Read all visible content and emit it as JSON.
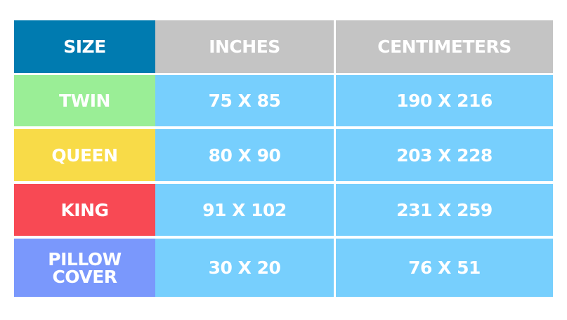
{
  "header": {
    "size": "SIZE",
    "inches": "INCHES",
    "centimeters": "CENTIMETERS"
  },
  "rows": [
    {
      "size": "TWIN",
      "inches": "75 X 85",
      "centimeters": "190 X 216",
      "color": "#9aee96"
    },
    {
      "size": "QUEEN",
      "inches": "80 X 90",
      "centimeters": "203 X 228",
      "color": "#f8db48"
    },
    {
      "size": "KING",
      "inches": "91 X 102",
      "centimeters": "231 X 259",
      "color": "#f84954"
    },
    {
      "size": "PILLOW COVER",
      "inches": "30 X 20",
      "centimeters": "76 X 51",
      "color": "#7a98fc"
    }
  ],
  "colors": {
    "header_size": "#007bb0",
    "header_gray": "#c4c4c4",
    "value_cells": "#77cffd"
  }
}
